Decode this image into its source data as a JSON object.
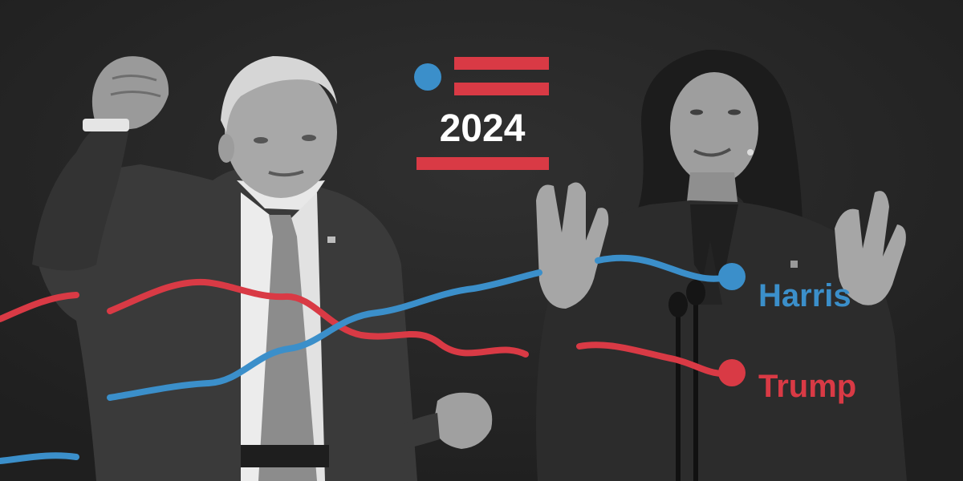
{
  "header": {
    "year": "2024"
  },
  "candidates": [
    {
      "name": "Harris",
      "color": "#3b8fca"
    },
    {
      "name": "Trump",
      "color": "#d93a45"
    }
  ],
  "palette": {
    "background": "#262626",
    "flag_red": "#d93a45",
    "flag_blue": "#3b8fca",
    "text_white": "#ffffff"
  },
  "photos": [
    {
      "subject": "man-raising-fist-photo"
    },
    {
      "subject": "woman-at-podium-photo"
    }
  ]
}
